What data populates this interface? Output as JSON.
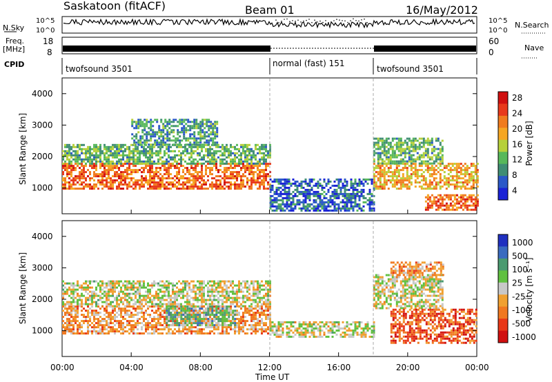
{
  "header": {
    "station": "Saskatoon (fitACF)",
    "beam": "Beam 01",
    "date": "16/May/2012"
  },
  "strip_labels": {
    "nsky": "N.Sky",
    "nsearch": "N.Search",
    "freq": "Freq.",
    "freq_unit": "[MHz]",
    "nave": "Nave",
    "cpid": "CPID"
  },
  "strip_ticks": {
    "noise_left_top": "10^5",
    "noise_left_bot": "10^0",
    "noise_right_top": "10^5",
    "noise_right_bot": "10^0",
    "freq_top": "18",
    "freq_bot": "8",
    "nave_top": "60",
    "nave_bot": "0"
  },
  "cpid_segments": [
    {
      "label": "twofsound 3501",
      "start": 0,
      "end": 12
    },
    {
      "label": "normal (fast) 151",
      "start": 12,
      "end": 18
    },
    {
      "label": "twofsound 3501",
      "start": 18,
      "end": 24
    }
  ],
  "panels": {
    "power": {
      "ylabel": "Slant Range [km]",
      "cbar_label": "Power [dB]",
      "cbar_ticks": [
        "4",
        "8",
        "12",
        "16",
        "20",
        "24",
        "28"
      ]
    },
    "velocity": {
      "ylabel": "Slant Range [km]",
      "cbar_label": "Velocity [m s⁻¹]",
      "cbar_ticks": [
        "1000",
        "500",
        "100",
        "25",
        "-25",
        "-100",
        "-500",
        "-1000"
      ]
    }
  },
  "y_ticks": [
    "1000",
    "2000",
    "3000",
    "4000"
  ],
  "x_ticks": [
    "00:00",
    "04:00",
    "08:00",
    "12:00",
    "16:00",
    "20:00",
    "00:00"
  ],
  "xlabel": "Time UT",
  "colors": {
    "power_scale": [
      "#1a22d6",
      "#2a58c8",
      "#3f8d74",
      "#57b85a",
      "#b6d03a",
      "#f5a623",
      "#f07b1e",
      "#e8391b",
      "#d01010"
    ],
    "velocity_scale": [
      "#2030c0",
      "#3a6bc0",
      "#4a9a70",
      "#60c040",
      "#c8c8c8",
      "#f0a030",
      "#f07820",
      "#e83818",
      "#d01010"
    ]
  },
  "chart_data": [
    {
      "type": "heatmap",
      "title": "Saskatoon (fitACF) Beam 01 16/May/2012",
      "xlabel": "Time UT",
      "ylabel": "Slant Range [km]",
      "colorbar": "Power [dB]",
      "x_range": [
        "00:00",
        "24:00"
      ],
      "ylim": [
        180,
        4500
      ],
      "clim": [
        0,
        32
      ],
      "regions": [
        {
          "time": [
            0,
            12
          ],
          "range": [
            1000,
            1800
          ],
          "power_db": 24
        },
        {
          "time": [
            0,
            12
          ],
          "range": [
            1800,
            2400
          ],
          "power_db": 12
        },
        {
          "time": [
            4,
            9
          ],
          "range": [
            2400,
            3200
          ],
          "power_db": 10
        },
        {
          "time": [
            12,
            18
          ],
          "range": [
            300,
            1300
          ],
          "power_db": 6
        },
        {
          "time": [
            18,
            24
          ],
          "range": [
            1000,
            1800
          ],
          "power_db": 20
        },
        {
          "time": [
            18,
            22
          ],
          "range": [
            1800,
            2600
          ],
          "power_db": 12
        },
        {
          "time": [
            21,
            24
          ],
          "range": [
            300,
            800
          ],
          "power_db": 24
        }
      ]
    },
    {
      "type": "heatmap",
      "title": "",
      "xlabel": "Time UT",
      "ylabel": "Slant Range [km]",
      "colorbar": "Velocity [m s⁻¹]",
      "x_range": [
        "00:00",
        "24:00"
      ],
      "ylim": [
        180,
        4500
      ],
      "clim": [
        -1000,
        1000
      ],
      "regions": [
        {
          "time": [
            0,
            12
          ],
          "range": [
            1800,
            2600
          ],
          "velocity": 0
        },
        {
          "time": [
            0,
            12
          ],
          "range": [
            900,
            1800
          ],
          "velocity": -300
        },
        {
          "time": [
            6,
            10
          ],
          "range": [
            1200,
            1800
          ],
          "velocity": 300
        },
        {
          "time": [
            12,
            18
          ],
          "range": [
            800,
            1300
          ],
          "velocity": 0
        },
        {
          "time": [
            18,
            22
          ],
          "range": [
            1700,
            2800
          ],
          "velocity": 0
        },
        {
          "time": [
            19,
            24
          ],
          "range": [
            600,
            1700
          ],
          "velocity": -600
        },
        {
          "time": [
            19,
            22
          ],
          "range": [
            2800,
            3200
          ],
          "velocity": -300
        }
      ]
    }
  ]
}
